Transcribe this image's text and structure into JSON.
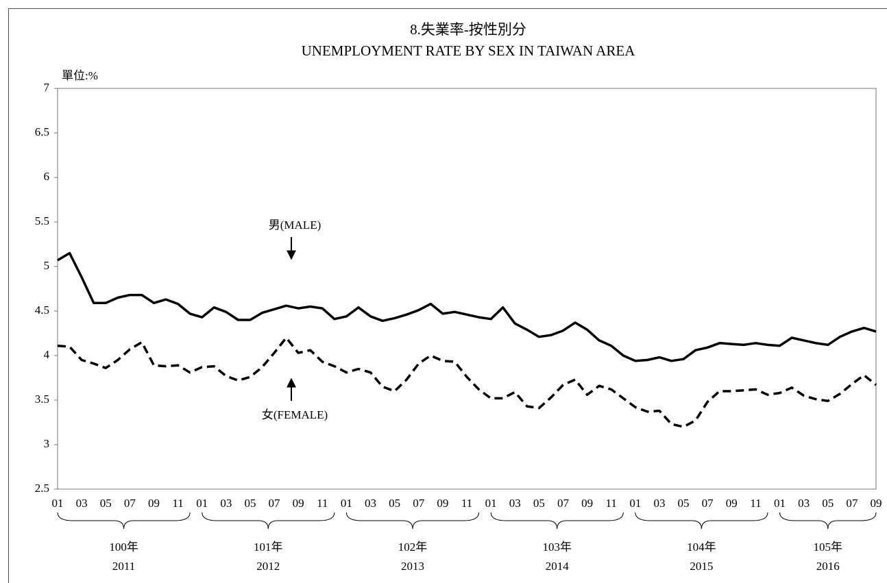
{
  "chart_data": {
    "type": "line",
    "title": "8.失業率-按性別分",
    "subtitle": "UNEMPLOYMENT RATE BY SEX IN TAIWAN AREA",
    "y_label": "單位:%",
    "ylim": [
      2.5,
      7
    ],
    "yticks": [
      2.5,
      3,
      3.5,
      4,
      4.5,
      5,
      5.5,
      6,
      6.5,
      7
    ],
    "grid": false,
    "categories": [
      "01",
      null,
      "03",
      null,
      "05",
      null,
      "07",
      null,
      "09",
      null,
      "11",
      null,
      "01",
      null,
      "03",
      null,
      "05",
      null,
      "07",
      null,
      "09",
      null,
      "11",
      null,
      "01",
      null,
      "03",
      null,
      "05",
      null,
      "07",
      null,
      "09",
      null,
      "11",
      null,
      "01",
      null,
      "03",
      null,
      "05",
      null,
      "07",
      null,
      "09",
      null,
      "11",
      null,
      "01",
      null,
      "03",
      null,
      "05",
      null,
      "07",
      null,
      "09",
      null,
      "11",
      null,
      "01",
      null,
      "03",
      null,
      "05",
      null,
      "07",
      null,
      "09"
    ],
    "groups": [
      {
        "label": "100年",
        "year": "2011"
      },
      {
        "label": "101年",
        "year": "2012"
      },
      {
        "label": "102年",
        "year": "2013"
      },
      {
        "label": "103年",
        "year": "2014"
      },
      {
        "label": "104年",
        "year": "2015"
      },
      {
        "label": "105年",
        "year": "2016"
      }
    ],
    "series": [
      {
        "name": "男(MALE)",
        "color": "#000000",
        "dashed": false,
        "values": [
          5.07,
          5.15,
          4.88,
          4.59,
          4.59,
          4.65,
          4.68,
          4.68,
          4.59,
          4.63,
          4.58,
          4.47,
          4.43,
          4.54,
          4.49,
          4.4,
          4.4,
          4.48,
          4.52,
          4.56,
          4.53,
          4.55,
          4.53,
          4.41,
          4.44,
          4.54,
          4.44,
          4.39,
          4.42,
          4.46,
          4.51,
          4.58,
          4.47,
          4.49,
          4.46,
          4.43,
          4.41,
          4.54,
          4.36,
          4.29,
          4.21,
          4.23,
          4.28,
          4.37,
          4.29,
          4.17,
          4.11,
          4.0,
          3.94,
          3.95,
          3.98,
          3.94,
          3.96,
          4.06,
          4.09,
          4.14,
          4.13,
          4.12,
          4.14,
          4.12,
          4.11,
          4.2,
          4.17,
          4.14,
          4.12,
          4.21,
          4.27,
          4.31,
          4.27
        ]
      },
      {
        "name": "女(FEMALE)",
        "color": "#000000",
        "dashed": true,
        "values": [
          4.11,
          4.1,
          3.95,
          3.91,
          3.86,
          3.95,
          4.07,
          4.15,
          3.89,
          3.88,
          3.89,
          3.81,
          3.87,
          3.88,
          3.77,
          3.72,
          3.76,
          3.87,
          4.03,
          4.2,
          4.03,
          4.06,
          3.93,
          3.88,
          3.81,
          3.85,
          3.81,
          3.65,
          3.6,
          3.73,
          3.91,
          4.0,
          3.94,
          3.93,
          3.76,
          3.62,
          3.52,
          3.52,
          3.59,
          3.43,
          3.41,
          3.53,
          3.67,
          3.73,
          3.56,
          3.66,
          3.62,
          3.52,
          3.42,
          3.37,
          3.38,
          3.23,
          3.2,
          3.27,
          3.48,
          3.6,
          3.6,
          3.61,
          3.62,
          3.56,
          3.58,
          3.64,
          3.55,
          3.51,
          3.49,
          3.57,
          3.68,
          3.78,
          3.67
        ]
      }
    ]
  }
}
